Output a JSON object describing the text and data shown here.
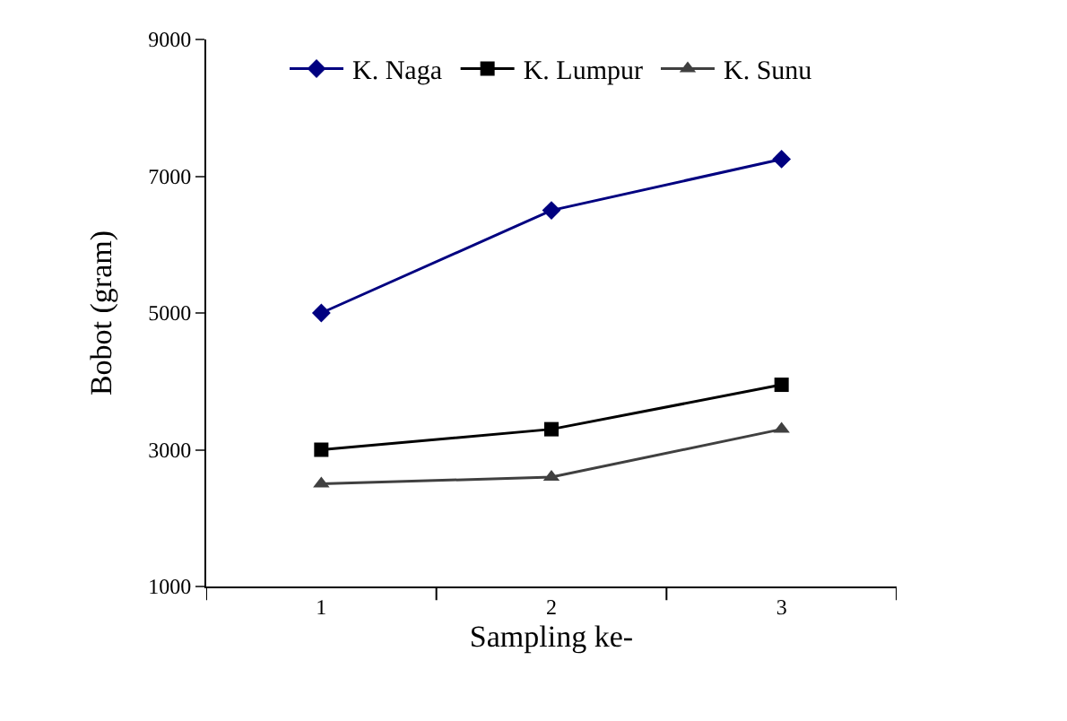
{
  "chart_data": {
    "type": "line",
    "xlabel": "Sampling ke-",
    "ylabel": "Bobot (gram)",
    "categories": [
      "1",
      "2",
      "3"
    ],
    "series": [
      {
        "name": "K. Naga",
        "color": "#000080",
        "marker": "diamond",
        "values": [
          5000,
          6500,
          7250
        ]
      },
      {
        "name": "K. Lumpur",
        "color": "#000000",
        "marker": "square",
        "values": [
          3000,
          3300,
          3950
        ]
      },
      {
        "name": "K. Sunu",
        "color": "#404040",
        "marker": "triangle",
        "values": [
          2500,
          2600,
          3300
        ]
      }
    ],
    "ylim": [
      1000,
      9000
    ],
    "yticks": [
      1000,
      3000,
      5000,
      7000,
      9000
    ],
    "legend": "top",
    "line_style": "solid"
  }
}
